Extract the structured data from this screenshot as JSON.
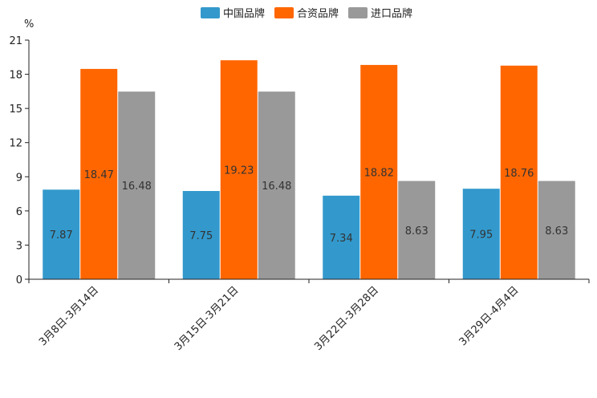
{
  "chart_data": {
    "type": "bar",
    "ylabel": "%",
    "ylim": [
      0,
      21
    ],
    "yticks": [
      0,
      3,
      6,
      9,
      12,
      15,
      18,
      21
    ],
    "categories": [
      "3月8日-3月14日",
      "3月15日-3月21日",
      "3月22日-3月28日",
      "3月29日-4月4日"
    ],
    "series": [
      {
        "name": "中国品牌",
        "color": "#3399cc",
        "values": [
          7.87,
          7.75,
          7.34,
          7.95
        ]
      },
      {
        "name": "合资品牌",
        "color": "#ff6600",
        "values": [
          18.47,
          19.23,
          18.82,
          18.76
        ]
      },
      {
        "name": "进口品牌",
        "color": "#999999",
        "values": [
          16.48,
          16.48,
          8.63,
          8.63
        ]
      }
    ],
    "legend_position": "top-center",
    "grid": false
  }
}
